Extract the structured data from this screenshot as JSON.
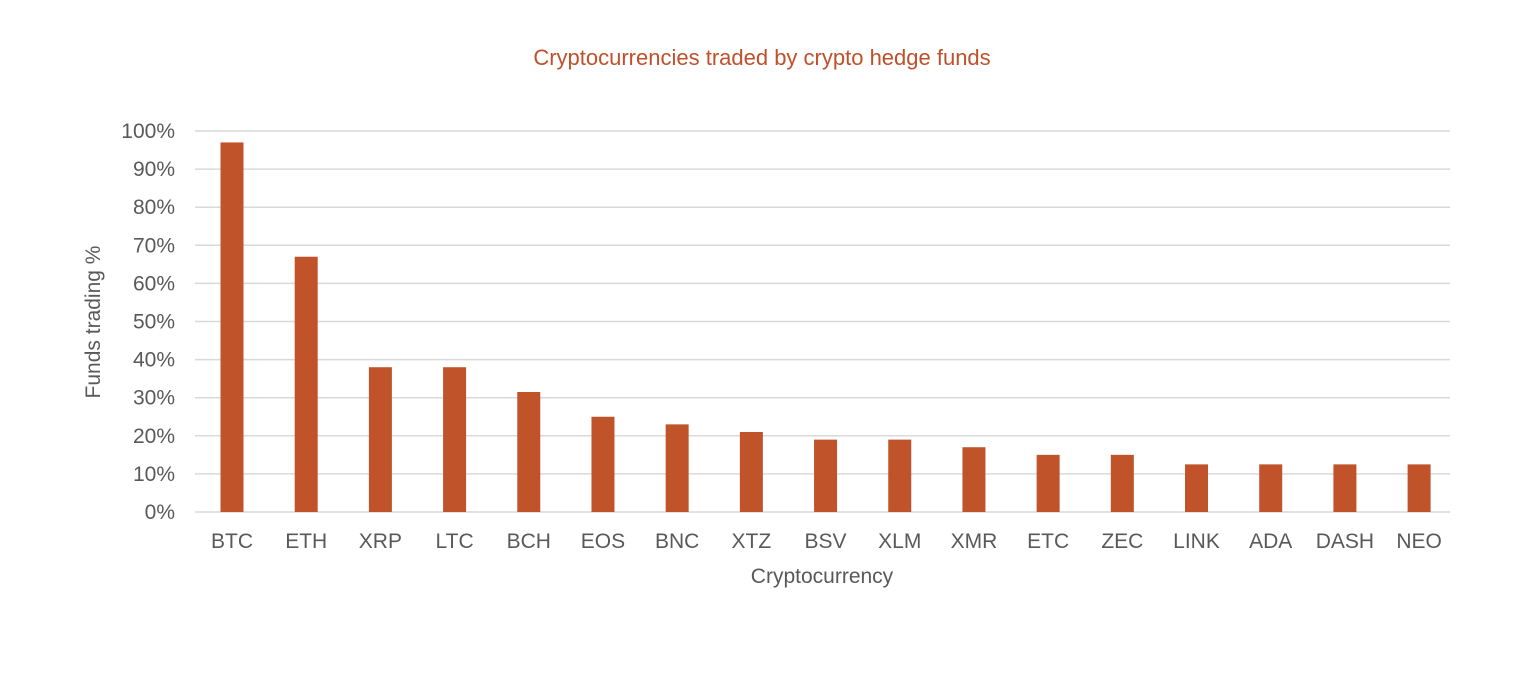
{
  "chart_data": {
    "type": "bar",
    "title": "Cryptocurrencies traded by crypto hedge funds",
    "xlabel": "Cryptocurrency",
    "ylabel": "Funds trading %",
    "categories": [
      "BTC",
      "ETH",
      "XRP",
      "LTC",
      "BCH",
      "EOS",
      "BNC",
      "XTZ",
      "BSV",
      "XLM",
      "XMR",
      "ETC",
      "ZEC",
      "LINK",
      "ADA",
      "DASH",
      "NEO"
    ],
    "values": [
      97,
      67,
      38,
      38,
      31.5,
      25,
      23,
      21,
      19,
      19,
      17,
      15,
      15,
      12.5,
      12.5,
      12.5,
      12.5
    ],
    "ylim": [
      0,
      100
    ],
    "yticks": [
      "0%",
      "10%",
      "20%",
      "30%",
      "40%",
      "50%",
      "60%",
      "70%",
      "80%",
      "90%",
      "100%"
    ],
    "grid": true,
    "legend": "none",
    "bar_color": "#c0532a",
    "title_color": "#c0502a"
  }
}
